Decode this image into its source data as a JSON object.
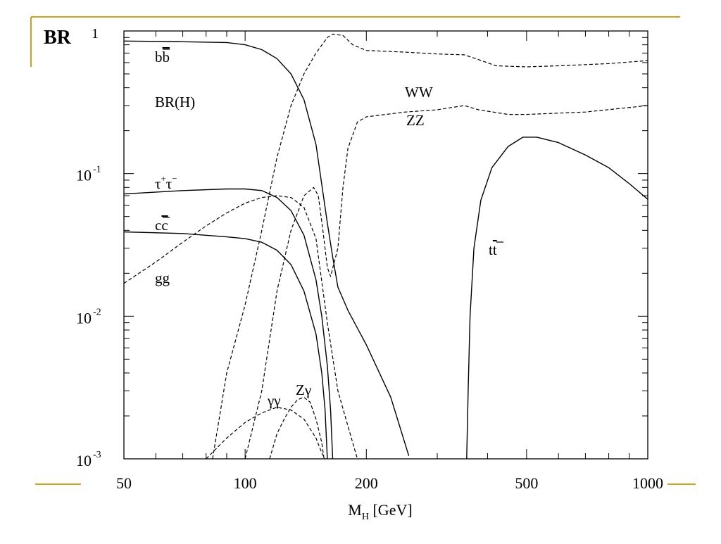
{
  "colors": {
    "accent": "#D4A017",
    "solid_curve": "#000000",
    "dashed_curve": "#000000"
  },
  "slide": {
    "corner_label": "BR",
    "footer_marks": "accent lines at left and right of the axis labels"
  },
  "chart_data": {
    "type": "line",
    "xscale": "log",
    "yscale": "log",
    "xlim": [
      50,
      1000
    ],
    "ylim": [
      0.001,
      1
    ],
    "x_ticks": [
      {
        "value": 50,
        "label": "50"
      },
      {
        "value": 100,
        "label": "100"
      },
      {
        "value": 200,
        "label": "200"
      },
      {
        "value": 500,
        "label": "500"
      },
      {
        "value": 1000,
        "label": "1000"
      }
    ],
    "y_ticks": [
      {
        "value": 1,
        "mantissa": "1",
        "exponent": ""
      },
      {
        "value": 0.1,
        "mantissa": "10",
        "exponent": "-1"
      },
      {
        "value": 0.01,
        "mantissa": "10",
        "exponent": "-2"
      },
      {
        "value": 0.001,
        "mantissa": "10",
        "exponent": "-3"
      }
    ],
    "xlabel": {
      "main": "M",
      "subscript": "H",
      "unit": " [GeV]"
    },
    "annotation": "BR(H)",
    "grid": false,
    "series": [
      {
        "id": "bb",
        "style": "solid",
        "label": {
          "base": "b",
          "bar": "b",
          "sup": ""
        },
        "points": [
          [
            50,
            0.85
          ],
          [
            70,
            0.84
          ],
          [
            90,
            0.83
          ],
          [
            100,
            0.8
          ],
          [
            110,
            0.74
          ],
          [
            120,
            0.64
          ],
          [
            130,
            0.5
          ],
          [
            140,
            0.33
          ],
          [
            150,
            0.16
          ],
          [
            160,
            0.045
          ],
          [
            165,
            0.026
          ],
          [
            170,
            0.016
          ],
          [
            180,
            0.011
          ],
          [
            200,
            0.0063
          ],
          [
            230,
            0.0027
          ],
          [
            255,
            0.00105
          ]
        ]
      },
      {
        "id": "tautau",
        "style": "solid",
        "label": {
          "base": "τ",
          "sup": "+",
          "base2": "τ",
          "sup2": "−"
        },
        "points": [
          [
            50,
            0.072
          ],
          [
            70,
            0.076
          ],
          [
            90,
            0.078
          ],
          [
            100,
            0.078
          ],
          [
            110,
            0.076
          ],
          [
            120,
            0.068
          ],
          [
            130,
            0.055
          ],
          [
            140,
            0.037
          ],
          [
            150,
            0.018
          ],
          [
            155,
            0.01
          ],
          [
            160,
            0.0045
          ],
          [
            163,
            0.0022
          ],
          [
            165,
            0.001
          ]
        ]
      },
      {
        "id": "cc",
        "style": "solid",
        "label": {
          "base": "c",
          "bar": "c",
          "sup": ""
        },
        "points": [
          [
            50,
            0.039
          ],
          [
            70,
            0.038
          ],
          [
            90,
            0.036
          ],
          [
            100,
            0.035
          ],
          [
            110,
            0.033
          ],
          [
            120,
            0.029
          ],
          [
            130,
            0.023
          ],
          [
            140,
            0.015
          ],
          [
            150,
            0.0075
          ],
          [
            155,
            0.004
          ],
          [
            158,
            0.0022
          ],
          [
            160,
            0.001
          ]
        ]
      },
      {
        "id": "tt",
        "style": "solid",
        "label": {
          "base": "t",
          "bar": "t",
          "sup": ""
        },
        "points": [
          [
            355,
            0.001
          ],
          [
            358,
            0.003
          ],
          [
            362,
            0.01
          ],
          [
            370,
            0.03
          ],
          [
            385,
            0.065
          ],
          [
            410,
            0.11
          ],
          [
            450,
            0.155
          ],
          [
            490,
            0.18
          ],
          [
            530,
            0.18
          ],
          [
            600,
            0.165
          ],
          [
            700,
            0.135
          ],
          [
            800,
            0.11
          ],
          [
            900,
            0.085
          ],
          [
            1000,
            0.066
          ]
        ]
      },
      {
        "id": "WW",
        "style": "dashed",
        "label": {
          "base": "WW",
          "sup": ""
        },
        "points": [
          [
            83,
            0.001
          ],
          [
            90,
            0.004
          ],
          [
            100,
            0.012
          ],
          [
            110,
            0.04
          ],
          [
            120,
            0.13
          ],
          [
            130,
            0.3
          ],
          [
            140,
            0.5
          ],
          [
            150,
            0.7
          ],
          [
            160,
            0.9
          ],
          [
            165,
            0.95
          ],
          [
            175,
            0.93
          ],
          [
            185,
            0.8
          ],
          [
            200,
            0.73
          ],
          [
            250,
            0.71
          ],
          [
            300,
            0.69
          ],
          [
            350,
            0.68
          ],
          [
            380,
            0.63
          ],
          [
            420,
            0.57
          ],
          [
            500,
            0.56
          ],
          [
            600,
            0.57
          ],
          [
            800,
            0.59
          ],
          [
            1000,
            0.62
          ]
        ]
      },
      {
        "id": "ZZ",
        "style": "dashed",
        "label": {
          "base": "ZZ",
          "sup": ""
        },
        "points": [
          [
            100,
            0.001
          ],
          [
            110,
            0.003
          ],
          [
            120,
            0.015
          ],
          [
            130,
            0.04
          ],
          [
            140,
            0.07
          ],
          [
            148,
            0.08
          ],
          [
            152,
            0.07
          ],
          [
            156,
            0.04
          ],
          [
            160,
            0.022
          ],
          [
            163,
            0.019
          ],
          [
            170,
            0.03
          ],
          [
            175,
            0.08
          ],
          [
            180,
            0.15
          ],
          [
            190,
            0.23
          ],
          [
            200,
            0.25
          ],
          [
            250,
            0.27
          ],
          [
            300,
            0.28
          ],
          [
            350,
            0.3
          ],
          [
            380,
            0.28
          ],
          [
            450,
            0.26
          ],
          [
            500,
            0.26
          ],
          [
            700,
            0.27
          ],
          [
            1000,
            0.3
          ]
        ]
      },
      {
        "id": "gg",
        "style": "dashed",
        "label": {
          "base": "gg",
          "sup": ""
        },
        "points": [
          [
            50,
            0.017
          ],
          [
            60,
            0.024
          ],
          [
            70,
            0.033
          ],
          [
            80,
            0.043
          ],
          [
            90,
            0.053
          ],
          [
            100,
            0.062
          ],
          [
            110,
            0.068
          ],
          [
            120,
            0.07
          ],
          [
            130,
            0.068
          ],
          [
            140,
            0.058
          ],
          [
            150,
            0.035
          ],
          [
            160,
            0.009
          ],
          [
            170,
            0.003
          ],
          [
            180,
            0.0017
          ],
          [
            190,
            0.001
          ]
        ]
      },
      {
        "id": "gammagamma",
        "style": "dashed",
        "label": {
          "base": "γγ",
          "sup": ""
        },
        "points": [
          [
            80,
            0.001
          ],
          [
            90,
            0.0014
          ],
          [
            100,
            0.0018
          ],
          [
            110,
            0.0021
          ],
          [
            120,
            0.0023
          ],
          [
            130,
            0.0022
          ],
          [
            140,
            0.0019
          ],
          [
            150,
            0.0014
          ],
          [
            155,
            0.0011
          ],
          [
            158,
            0.001
          ]
        ]
      },
      {
        "id": "Zgamma",
        "style": "dashed",
        "label": {
          "base": "Zγ",
          "sup": ""
        },
        "points": [
          [
            115,
            0.001
          ],
          [
            120,
            0.0015
          ],
          [
            125,
            0.0019
          ],
          [
            130,
            0.0023
          ],
          [
            135,
            0.0026
          ],
          [
            140,
            0.0027
          ],
          [
            145,
            0.0025
          ],
          [
            150,
            0.0019
          ],
          [
            155,
            0.0013
          ],
          [
            157,
            0.001
          ]
        ]
      }
    ]
  }
}
